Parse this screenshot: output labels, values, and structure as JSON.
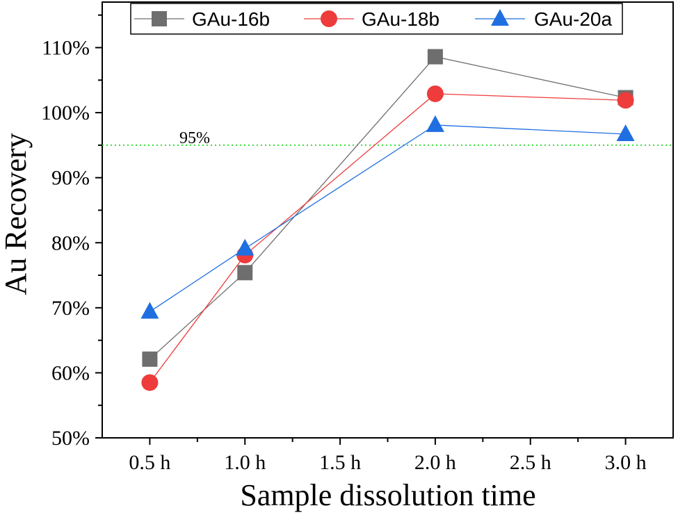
{
  "chart_data": {
    "type": "line",
    "title": "",
    "xlabel": "Sample dissolution time",
    "ylabel": "Au Recovery",
    "categories": [
      "0.5 h",
      "1.0 h",
      "1.5 h",
      "2.0 h",
      "2.5 h",
      "3.0 h"
    ],
    "x_tick_values": [
      0.5,
      1.0,
      1.5,
      2.0,
      2.5,
      3.0
    ],
    "xlim": [
      0.25,
      3.25
    ],
    "ylim": [
      50,
      117
    ],
    "y_ticks": [
      50,
      60,
      70,
      80,
      90,
      100,
      110
    ],
    "y_tick_labels": [
      "50%",
      "60%",
      "70%",
      "80%",
      "90%",
      "100%",
      "110%"
    ],
    "grid": false,
    "legend_position": "top",
    "series": [
      {
        "name": "GAu-16b",
        "marker": "square",
        "color": "#6e6e6e",
        "x": [
          0.5,
          1.0,
          2.0,
          3.0
        ],
        "values": [
          62.1,
          75.4,
          108.6,
          102.3
        ]
      },
      {
        "name": "GAu-18b",
        "marker": "circle",
        "color": "#ee3b3b",
        "x": [
          0.5,
          1.0,
          2.0,
          3.0
        ],
        "values": [
          58.5,
          78.1,
          102.9,
          101.9
        ]
      },
      {
        "name": "GAu-20a",
        "marker": "triangle",
        "color": "#1f6fe0",
        "x": [
          0.5,
          1.0,
          2.0,
          3.0
        ],
        "values": [
          69.4,
          79.1,
          98.1,
          96.7
        ]
      }
    ],
    "reference_line": {
      "value": 95,
      "label": "95%",
      "color": "#33dd33",
      "style": "dotted"
    }
  }
}
